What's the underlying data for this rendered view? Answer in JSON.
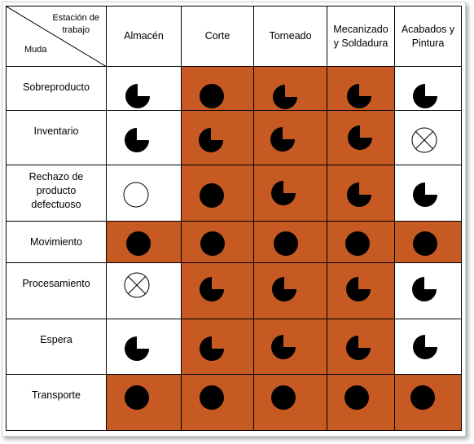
{
  "corner": {
    "top_label_line1": "Estación de",
    "top_label_line2": "trabajo",
    "bottom_label": "Muda"
  },
  "columns": [
    {
      "line1": "Almacén",
      "line2": ""
    },
    {
      "line1": "Corte",
      "line2": ""
    },
    {
      "line1": "Torneado",
      "line2": ""
    },
    {
      "line1": "Mecanizado",
      "line2": "y Soldadura"
    },
    {
      "line1": "Acabados y",
      "line2": "Pintura"
    }
  ],
  "highlight_color": "#c65a22",
  "rows": [
    {
      "label_lines": [
        "Sobreproducto"
      ],
      "cells": [
        {
          "symbol": "pie-three-quarter",
          "highlighted": false
        },
        {
          "symbol": "circle-full",
          "highlighted": true
        },
        {
          "symbol": "pie-three-quarter",
          "highlighted": true
        },
        {
          "symbol": "pie-three-quarter",
          "highlighted": true
        },
        {
          "symbol": "pie-three-quarter",
          "highlighted": false
        }
      ]
    },
    {
      "label_lines": [
        "Inventario"
      ],
      "cells": [
        {
          "symbol": "pie-three-quarter",
          "highlighted": false
        },
        {
          "symbol": "pie-three-quarter",
          "highlighted": true
        },
        {
          "symbol": "pie-three-quarter",
          "highlighted": true
        },
        {
          "symbol": "pie-three-quarter",
          "highlighted": true
        },
        {
          "symbol": "circle-cross",
          "highlighted": false
        }
      ]
    },
    {
      "label_lines": [
        "Rechazo de",
        "producto",
        "defectuoso"
      ],
      "cells": [
        {
          "symbol": "circle-empty",
          "highlighted": false
        },
        {
          "symbol": "circle-full",
          "highlighted": true
        },
        {
          "symbol": "pie-three-quarter",
          "highlighted": true
        },
        {
          "symbol": "pie-three-quarter",
          "highlighted": true
        },
        {
          "symbol": "pie-three-quarter",
          "highlighted": false
        }
      ]
    },
    {
      "label_lines": [
        "Movimiento"
      ],
      "cells": [
        {
          "symbol": "circle-full",
          "highlighted": true
        },
        {
          "symbol": "circle-full",
          "highlighted": true
        },
        {
          "symbol": "circle-full",
          "highlighted": true
        },
        {
          "symbol": "circle-full",
          "highlighted": true
        },
        {
          "symbol": "circle-full",
          "highlighted": true
        }
      ]
    },
    {
      "label_lines": [
        "Procesamiento"
      ],
      "cells": [
        {
          "symbol": "circle-cross",
          "highlighted": false
        },
        {
          "symbol": "pie-three-quarter",
          "highlighted": true
        },
        {
          "symbol": "pie-three-quarter",
          "highlighted": true
        },
        {
          "symbol": "pie-three-quarter",
          "highlighted": true
        },
        {
          "symbol": "pie-three-quarter",
          "highlighted": false
        }
      ]
    },
    {
      "label_lines": [
        "Espera"
      ],
      "cells": [
        {
          "symbol": "pie-three-quarter",
          "highlighted": false
        },
        {
          "symbol": "pie-three-quarter",
          "highlighted": true
        },
        {
          "symbol": "pie-three-quarter",
          "highlighted": true
        },
        {
          "symbol": "pie-three-quarter",
          "highlighted": true
        },
        {
          "symbol": "pie-three-quarter",
          "highlighted": false
        }
      ]
    },
    {
      "label_lines": [
        "Transporte"
      ],
      "cells": [
        {
          "symbol": "circle-full",
          "highlighted": true
        },
        {
          "symbol": "circle-full",
          "highlighted": true
        },
        {
          "symbol": "circle-full",
          "highlighted": true
        },
        {
          "symbol": "circle-full",
          "highlighted": true
        },
        {
          "symbol": "circle-full",
          "highlighted": true
        }
      ]
    }
  ]
}
